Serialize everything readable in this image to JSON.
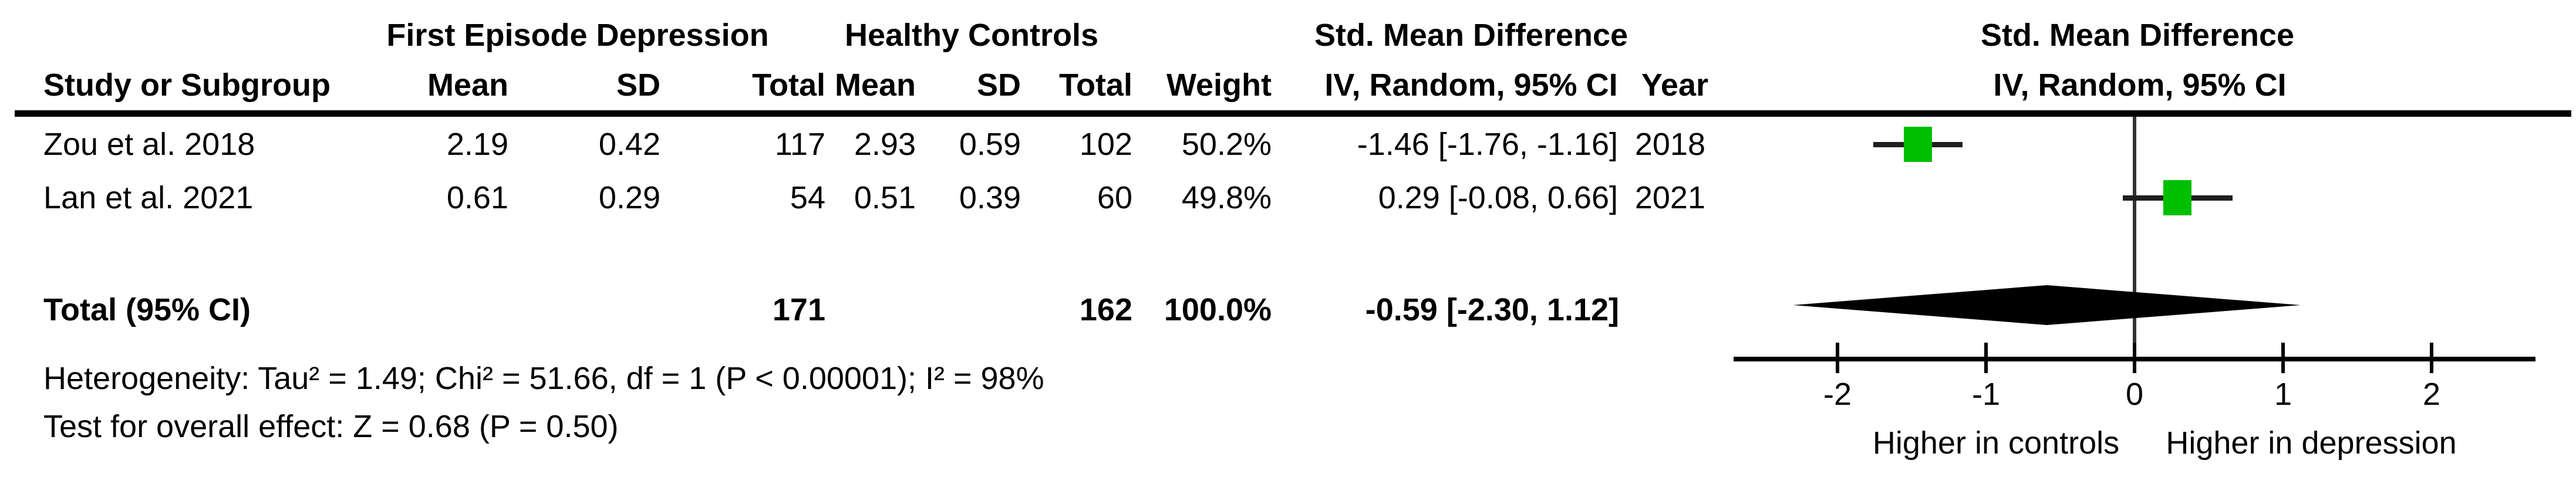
{
  "table": {
    "group1_header": "First Episode Depression",
    "group2_header": "Healthy Controls",
    "smd_header_table": "Std. Mean Difference",
    "smd_header_plot": "Std. Mean Difference",
    "columns": {
      "study": "Study or Subgroup",
      "mean_exp": "Mean",
      "sd_exp": "SD",
      "total_exp": "Total",
      "mean_ctrl": "Mean",
      "sd_ctrl": "SD",
      "total_ctrl": "Total",
      "weight": "Weight",
      "ci": "IV, Random, 95% CI",
      "year": "Year",
      "ci_plot": "IV, Random, 95% CI"
    },
    "rows": [
      {
        "study": "Zou et al. 2018",
        "mean_exp": "2.19",
        "sd_exp": "0.42",
        "total_exp": "117",
        "mean_ctrl": "2.93",
        "sd_ctrl": "0.59",
        "total_ctrl": "102",
        "weight": "50.2%",
        "ci": "-1.46 [-1.76, -1.16]",
        "year": "2018"
      },
      {
        "study": "Lan et al. 2021",
        "mean_exp": "0.61",
        "sd_exp": "0.29",
        "total_exp": "54",
        "mean_ctrl": "0.51",
        "sd_ctrl": "0.39",
        "total_ctrl": "60",
        "weight": "49.8%",
        "ci": "0.29 [-0.08, 0.66]",
        "year": "2021"
      }
    ],
    "total": {
      "label": "Total (95% CI)",
      "total_exp": "171",
      "total_ctrl": "162",
      "weight": "100.0%",
      "ci": "-0.59 [-2.30, 1.12]"
    },
    "heterogeneity": "Heterogeneity: Tau² = 1.49; Chi² = 51.66, df = 1 (P < 0.00001); I² = 98%",
    "overall_effect": "Test for overall effect: Z = 0.68 (P = 0.50)"
  },
  "plot": {
    "left_label": "Higher in controls",
    "right_label": "Higher in depression",
    "marker_color": "#00be00",
    "ci_line_color": "#1f1f1f",
    "diamond_color": "#000000"
  },
  "chart_data": {
    "type": "forest",
    "title": "Std. Mean Difference",
    "effect_model": "IV, Random, 95% CI",
    "x_ticks": [
      -2,
      -1,
      0,
      1,
      2
    ],
    "xlim": [
      -2.7,
      2.7
    ],
    "studies": [
      {
        "name": "Zou et al. 2018",
        "smd": -1.46,
        "ci_low": -1.76,
        "ci_high": -1.16,
        "weight_pct": 50.2,
        "year": 2018
      },
      {
        "name": "Lan et al. 2021",
        "smd": 0.29,
        "ci_low": -0.08,
        "ci_high": 0.66,
        "weight_pct": 49.8,
        "year": 2021
      }
    ],
    "total": {
      "smd": -0.59,
      "ci_low": -2.3,
      "ci_high": 1.12,
      "n_exp": 171,
      "n_ctrl": 162,
      "weight_pct": 100.0
    },
    "heterogeneity": {
      "tau2": 1.49,
      "chi2": 51.66,
      "df": 1,
      "p": "< 0.00001",
      "i2_pct": 98
    },
    "overall_effect": {
      "z": 0.68,
      "p": 0.5
    },
    "axis_direction_labels": {
      "left": "Higher in controls",
      "right": "Higher in depression"
    },
    "legend_position": "none",
    "grid": false
  }
}
